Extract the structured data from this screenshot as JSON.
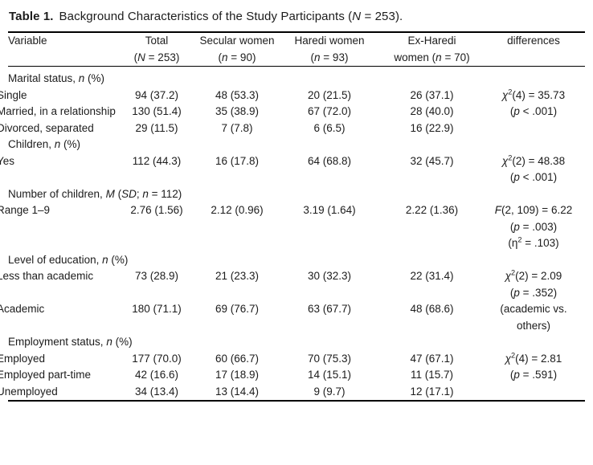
{
  "page": {
    "background": "#ffffff",
    "text_color": "#1c1c1c",
    "rule_color": "#000000"
  },
  "title": {
    "label": "Table 1.",
    "segments": [
      "Background Characteristics of the Study Participants (",
      {
        "t": "N",
        "i": true
      },
      " = 253)."
    ]
  },
  "table": {
    "header": [
      {
        "lines": [
          [
            "Variable"
          ]
        ]
      },
      {
        "lines": [
          [
            "Total"
          ],
          [
            "(",
            {
              "t": "N",
              "i": true
            },
            " = 253)"
          ]
        ]
      },
      {
        "lines": [
          [
            "Secular women"
          ],
          [
            "(",
            {
              "t": "n",
              "i": true
            },
            " = 90)"
          ]
        ]
      },
      {
        "lines": [
          [
            "Haredi women"
          ],
          [
            "(",
            {
              "t": "n",
              "i": true
            },
            " = 93)"
          ]
        ]
      },
      {
        "lines": [
          [
            "Ex-Haredi"
          ],
          [
            "women (",
            {
              "t": "n",
              "i": true
            },
            " = 70)"
          ]
        ]
      },
      {
        "lines": [
          [
            "differences"
          ]
        ]
      }
    ],
    "rows": [
      {
        "type": "section",
        "label": [
          "Marital status, ",
          {
            "t": "n",
            "i": true
          },
          " (%)"
        ]
      },
      {
        "type": "data",
        "label": [
          "Single"
        ],
        "values": [
          "94 (37.2)",
          "48 (53.3)",
          "20 (21.5)",
          "26 (37.1)"
        ],
        "diff": [
          [
            {
              "t": "χ"
            },
            {
              "t": "2",
              "sup": true
            },
            "(4) = 35.73"
          ]
        ]
      },
      {
        "type": "data",
        "label": [
          "Married, in a relationship"
        ],
        "values": [
          "130 (51.4)",
          "35 (38.9)",
          "67 (72.0)",
          "28 (40.0)"
        ],
        "diff": [
          [
            "(",
            {
              "t": "p",
              "i": true
            },
            " < .001)"
          ]
        ]
      },
      {
        "type": "data",
        "label": [
          "Divorced, separated"
        ],
        "values": [
          "29 (11.5)",
          "7 (7.8)",
          "6 (6.5)",
          "16 (22.9)"
        ],
        "diff": []
      },
      {
        "type": "section",
        "label": [
          "Children, ",
          {
            "t": "n",
            "i": true
          },
          " (%)"
        ]
      },
      {
        "type": "data",
        "label": [
          "Yes"
        ],
        "values": [
          "112 (44.3)",
          "16 (17.8)",
          "64 (68.8)",
          "32 (45.7)"
        ],
        "diff": [
          [
            {
              "t": "χ"
            },
            {
              "t": "2",
              "sup": true
            },
            "(2) = 48.38"
          ],
          [
            "(",
            {
              "t": "p",
              "i": true
            },
            " < .001)"
          ]
        ]
      },
      {
        "type": "section",
        "label": [
          "Number of children, ",
          {
            "t": "M",
            "i": true
          },
          " (",
          {
            "t": "SD",
            "i": true
          },
          "; ",
          {
            "t": "n",
            "i": true
          },
          " = 112)"
        ]
      },
      {
        "type": "data",
        "label": [
          "Range 1–9"
        ],
        "values": [
          "2.76 (1.56)",
          "2.12 (0.96)",
          "3.19 (1.64)",
          "2.22 (1.36)"
        ],
        "diff": [
          [
            {
              "t": "F",
              "i": true
            },
            "(2, 109) = 6.22"
          ],
          [
            "(",
            {
              "t": "p",
              "i": true
            },
            " = .003)"
          ],
          [
            "(η",
            {
              "t": "2",
              "sup": true
            },
            " = .103)"
          ]
        ]
      },
      {
        "type": "section",
        "label": [
          "Level of education, ",
          {
            "t": "n",
            "i": true
          },
          " (%)"
        ]
      },
      {
        "type": "data",
        "label": [
          "Less than academic"
        ],
        "values": [
          "73 (28.9)",
          "21 (23.3)",
          "30 (32.3)",
          "22 (31.4)"
        ],
        "diff": [
          [
            {
              "t": "χ"
            },
            {
              "t": "2",
              "sup": true
            },
            "(2) = 2.09"
          ],
          [
            "(",
            {
              "t": "p",
              "i": true
            },
            " = .352)"
          ]
        ]
      },
      {
        "type": "data",
        "label": [
          "Academic"
        ],
        "values": [
          "180 (71.1)",
          "69 (76.7)",
          "63 (67.7)",
          "48 (68.6)"
        ],
        "diff": [
          [
            "(academic vs. others)"
          ]
        ]
      },
      {
        "type": "section",
        "label": [
          "Employment status, ",
          {
            "t": "n",
            "i": true
          },
          " (%)"
        ]
      },
      {
        "type": "data",
        "label": [
          "Employed"
        ],
        "values": [
          "177 (70.0)",
          "60 (66.7)",
          "70 (75.3)",
          "47 (67.1)"
        ],
        "diff": [
          [
            {
              "t": "χ"
            },
            {
              "t": "2",
              "sup": true
            },
            "(4) = 2.81"
          ]
        ]
      },
      {
        "type": "data",
        "label": [
          "Employed part-time"
        ],
        "values": [
          "42 (16.6)",
          "17 (18.9)",
          "14 (15.1)",
          "11 (15.7)"
        ],
        "diff": [
          [
            "(",
            {
              "t": "p",
              "i": true
            },
            " = .591)"
          ]
        ]
      },
      {
        "type": "data",
        "label": [
          "Unemployed"
        ],
        "values": [
          "34 (13.4)",
          "13 (14.4)",
          "9 (9.7)",
          "12 (17.1)"
        ],
        "diff": []
      }
    ]
  }
}
